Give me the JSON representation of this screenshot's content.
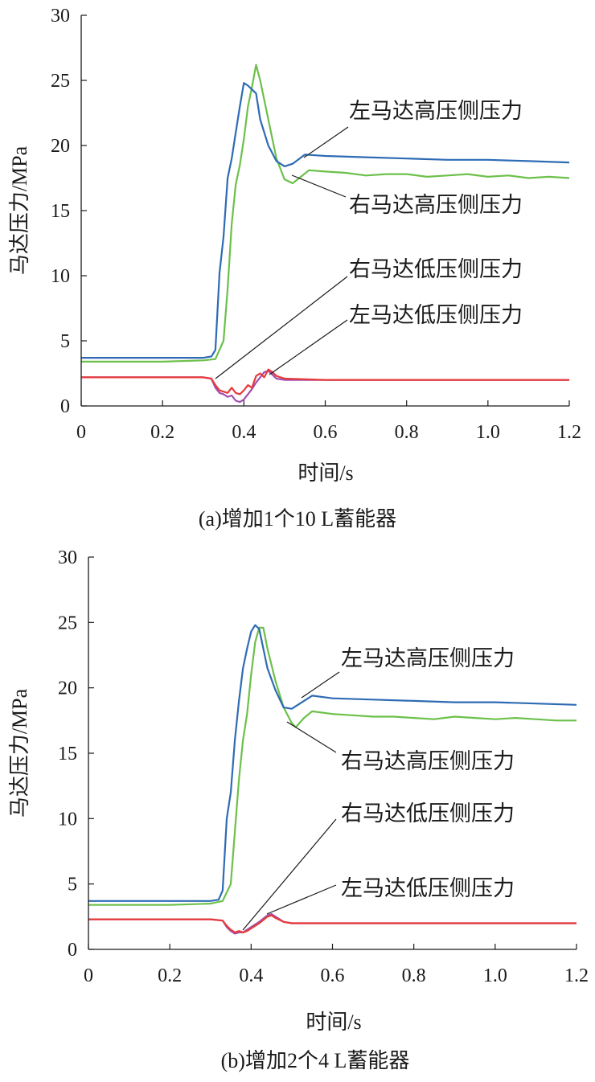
{
  "chart_data": [
    {
      "type": "line",
      "caption": "(a)增加1个10 L蓄能器",
      "xlabel": "时间/s",
      "ylabel": "马达压力/MPa",
      "xlim": [
        0,
        1.2
      ],
      "ylim": [
        0,
        30
      ],
      "xticks": [
        "0",
        "0.2",
        "0.4",
        "0.6",
        "0.8",
        "1.0",
        "1.2"
      ],
      "yticks": [
        "0",
        "5",
        "10",
        "15",
        "20",
        "25",
        "30"
      ],
      "grid": false,
      "colors": {
        "left_high": "#2e6bb5",
        "right_high": "#6cc04a",
        "right_low": "#e63a3a",
        "left_low": "#a24fb0"
      },
      "series": [
        {
          "name": "左马达高压侧压力",
          "color": "#2e6bb5",
          "points": [
            [
              0,
              3.7
            ],
            [
              0.1,
              3.7
            ],
            [
              0.2,
              3.7
            ],
            [
              0.3,
              3.7
            ],
            [
              0.32,
              3.8
            ],
            [
              0.33,
              4.3
            ],
            [
              0.34,
              10.2
            ],
            [
              0.35,
              13
            ],
            [
              0.36,
              17.5
            ],
            [
              0.37,
              19
            ],
            [
              0.38,
              21
            ],
            [
              0.39,
              23
            ],
            [
              0.4,
              24.8
            ],
            [
              0.41,
              24.6
            ],
            [
              0.42,
              24.3
            ],
            [
              0.43,
              24
            ],
            [
              0.44,
              22
            ],
            [
              0.46,
              20
            ],
            [
              0.48,
              18.8
            ],
            [
              0.5,
              18.4
            ],
            [
              0.52,
              18.6
            ],
            [
              0.55,
              19.3
            ],
            [
              0.6,
              19.2
            ],
            [
              0.7,
              19.1
            ],
            [
              0.8,
              19.0
            ],
            [
              0.9,
              18.9
            ],
            [
              1.0,
              18.9
            ],
            [
              1.1,
              18.8
            ],
            [
              1.2,
              18.7
            ]
          ]
        },
        {
          "name": "右马达高压侧压力",
          "color": "#6cc04a",
          "points": [
            [
              0,
              3.4
            ],
            [
              0.1,
              3.4
            ],
            [
              0.2,
              3.4
            ],
            [
              0.3,
              3.5
            ],
            [
              0.33,
              3.6
            ],
            [
              0.35,
              5
            ],
            [
              0.36,
              9
            ],
            [
              0.37,
              14
            ],
            [
              0.38,
              17
            ],
            [
              0.39,
              18.5
            ],
            [
              0.4,
              20.5
            ],
            [
              0.41,
              23
            ],
            [
              0.42,
              24.5
            ],
            [
              0.43,
              26.2
            ],
            [
              0.44,
              25
            ],
            [
              0.46,
              22
            ],
            [
              0.48,
              19
            ],
            [
              0.5,
              17.4
            ],
            [
              0.52,
              17.1
            ],
            [
              0.54,
              17.6
            ],
            [
              0.56,
              18.1
            ],
            [
              0.6,
              18.0
            ],
            [
              0.65,
              17.9
            ],
            [
              0.7,
              17.7
            ],
            [
              0.75,
              17.8
            ],
            [
              0.8,
              17.8
            ],
            [
              0.85,
              17.6
            ],
            [
              0.9,
              17.7
            ],
            [
              0.95,
              17.8
            ],
            [
              1.0,
              17.6
            ],
            [
              1.05,
              17.7
            ],
            [
              1.1,
              17.5
            ],
            [
              1.15,
              17.6
            ],
            [
              1.2,
              17.5
            ]
          ]
        },
        {
          "name": "右马达低压侧压力",
          "color": "#e63a3a",
          "points": [
            [
              0,
              2.2
            ],
            [
              0.1,
              2.2
            ],
            [
              0.2,
              2.2
            ],
            [
              0.3,
              2.2
            ],
            [
              0.32,
              2.1
            ],
            [
              0.33,
              1.6
            ],
            [
              0.34,
              1.2
            ],
            [
              0.36,
              1.0
            ],
            [
              0.37,
              1.4
            ],
            [
              0.38,
              1.0
            ],
            [
              0.39,
              0.9
            ],
            [
              0.4,
              1.2
            ],
            [
              0.41,
              1.6
            ],
            [
              0.42,
              1.4
            ],
            [
              0.43,
              2.3
            ],
            [
              0.44,
              2.5
            ],
            [
              0.45,
              2.2
            ],
            [
              0.46,
              2.8
            ],
            [
              0.47,
              2.6
            ],
            [
              0.48,
              2.3
            ],
            [
              0.5,
              2.1
            ],
            [
              0.6,
              2.0
            ],
            [
              0.8,
              2.0
            ],
            [
              1.0,
              2.0
            ],
            [
              1.2,
              2.0
            ]
          ]
        },
        {
          "name": "左马达低压侧压力",
          "color": "#a24fb0",
          "points": [
            [
              0,
              2.2
            ],
            [
              0.1,
              2.2
            ],
            [
              0.2,
              2.2
            ],
            [
              0.3,
              2.2
            ],
            [
              0.32,
              2.1
            ],
            [
              0.33,
              1.4
            ],
            [
              0.34,
              1.0
            ],
            [
              0.35,
              0.9
            ],
            [
              0.36,
              0.7
            ],
            [
              0.37,
              0.8
            ],
            [
              0.38,
              0.4
            ],
            [
              0.39,
              0.3
            ],
            [
              0.4,
              0.5
            ],
            [
              0.41,
              0.9
            ],
            [
              0.42,
              1.3
            ],
            [
              0.43,
              1.8
            ],
            [
              0.44,
              2.2
            ],
            [
              0.45,
              2.6
            ],
            [
              0.46,
              2.7
            ],
            [
              0.47,
              2.4
            ],
            [
              0.48,
              2.1
            ],
            [
              0.5,
              2.0
            ],
            [
              0.6,
              2.0
            ],
            [
              0.8,
              2.0
            ],
            [
              1.0,
              2.0
            ],
            [
              1.2,
              2.0
            ]
          ]
        }
      ]
    },
    {
      "type": "line",
      "caption": "(b)增加2个4 L蓄能器",
      "xlabel": "时间/s",
      "ylabel": "马达压力/MPa",
      "xlim": [
        0,
        1.2
      ],
      "ylim": [
        0,
        30
      ],
      "xticks": [
        "0",
        "0.2",
        "0.4",
        "0.6",
        "0.8",
        "1.0",
        "1.2"
      ],
      "yticks": [
        "0",
        "5",
        "10",
        "15",
        "20",
        "25",
        "30"
      ],
      "grid": false,
      "colors": {
        "left_high": "#2e6bb5",
        "right_high": "#6cc04a",
        "right_low": "#e63a3a",
        "left_low": "#a24fb0"
      },
      "series": [
        {
          "name": "左马达高压侧压力",
          "color": "#2e6bb5",
          "points": [
            [
              0,
              3.7
            ],
            [
              0.1,
              3.7
            ],
            [
              0.2,
              3.7
            ],
            [
              0.3,
              3.7
            ],
            [
              0.32,
              3.8
            ],
            [
              0.33,
              4.5
            ],
            [
              0.34,
              10.0
            ],
            [
              0.35,
              12
            ],
            [
              0.36,
              16
            ],
            [
              0.37,
              19
            ],
            [
              0.38,
              21.5
            ],
            [
              0.39,
              23
            ],
            [
              0.4,
              24.3
            ],
            [
              0.41,
              24.8
            ],
            [
              0.42,
              24.5
            ],
            [
              0.43,
              23
            ],
            [
              0.44,
              21.5
            ],
            [
              0.46,
              19.8
            ],
            [
              0.48,
              18.5
            ],
            [
              0.5,
              18.4
            ],
            [
              0.52,
              18.8
            ],
            [
              0.55,
              19.4
            ],
            [
              0.6,
              19.2
            ],
            [
              0.7,
              19.1
            ],
            [
              0.8,
              19.0
            ],
            [
              0.9,
              18.9
            ],
            [
              1.0,
              18.9
            ],
            [
              1.1,
              18.8
            ],
            [
              1.2,
              18.7
            ]
          ]
        },
        {
          "name": "右马达高压侧压力",
          "color": "#6cc04a",
          "points": [
            [
              0,
              3.4
            ],
            [
              0.1,
              3.4
            ],
            [
              0.2,
              3.4
            ],
            [
              0.3,
              3.5
            ],
            [
              0.33,
              3.7
            ],
            [
              0.35,
              5
            ],
            [
              0.36,
              9
            ],
            [
              0.37,
              13
            ],
            [
              0.38,
              16
            ],
            [
              0.39,
              18
            ],
            [
              0.4,
              21
            ],
            [
              0.41,
              23.5
            ],
            [
              0.42,
              24.6
            ],
            [
              0.43,
              24.6
            ],
            [
              0.44,
              23
            ],
            [
              0.46,
              20.5
            ],
            [
              0.48,
              18.5
            ],
            [
              0.5,
              17.3
            ],
            [
              0.51,
              17
            ],
            [
              0.53,
              17.7
            ],
            [
              0.55,
              18.2
            ],
            [
              0.6,
              18.0
            ],
            [
              0.65,
              17.9
            ],
            [
              0.7,
              17.8
            ],
            [
              0.75,
              17.8
            ],
            [
              0.8,
              17.7
            ],
            [
              0.85,
              17.6
            ],
            [
              0.9,
              17.8
            ],
            [
              0.95,
              17.7
            ],
            [
              1.0,
              17.6
            ],
            [
              1.05,
              17.7
            ],
            [
              1.1,
              17.6
            ],
            [
              1.15,
              17.5
            ],
            [
              1.2,
              17.5
            ]
          ]
        },
        {
          "name": "右马达低压侧压力",
          "color": "#e63a3a",
          "points": [
            [
              0,
              2.3
            ],
            [
              0.1,
              2.3
            ],
            [
              0.2,
              2.3
            ],
            [
              0.3,
              2.3
            ],
            [
              0.33,
              2.2
            ],
            [
              0.34,
              1.8
            ],
            [
              0.35,
              1.5
            ],
            [
              0.36,
              1.3
            ],
            [
              0.37,
              1.4
            ],
            [
              0.38,
              1.3
            ],
            [
              0.39,
              1.4
            ],
            [
              0.4,
              1.6
            ],
            [
              0.42,
              2.0
            ],
            [
              0.44,
              2.5
            ],
            [
              0.45,
              2.6
            ],
            [
              0.46,
              2.4
            ],
            [
              0.48,
              2.1
            ],
            [
              0.5,
              2.0
            ],
            [
              0.6,
              2.0
            ],
            [
              0.8,
              2.0
            ],
            [
              1.0,
              2.0
            ],
            [
              1.2,
              2.0
            ]
          ]
        },
        {
          "name": "左马达低压侧压力",
          "color": "#a24fb0",
          "points": [
            [
              0,
              2.3
            ],
            [
              0.1,
              2.3
            ],
            [
              0.2,
              2.3
            ],
            [
              0.3,
              2.3
            ],
            [
              0.33,
              2.2
            ],
            [
              0.34,
              1.7
            ],
            [
              0.35,
              1.4
            ],
            [
              0.36,
              1.2
            ],
            [
              0.37,
              1.3
            ],
            [
              0.38,
              1.3
            ],
            [
              0.39,
              1.5
            ],
            [
              0.4,
              1.7
            ],
            [
              0.42,
              2.1
            ],
            [
              0.44,
              2.6
            ],
            [
              0.45,
              2.7
            ],
            [
              0.46,
              2.5
            ],
            [
              0.48,
              2.1
            ],
            [
              0.5,
              2.0
            ],
            [
              0.6,
              2.0
            ],
            [
              0.8,
              2.0
            ],
            [
              1.0,
              2.0
            ],
            [
              1.2,
              2.0
            ]
          ]
        }
      ]
    }
  ]
}
